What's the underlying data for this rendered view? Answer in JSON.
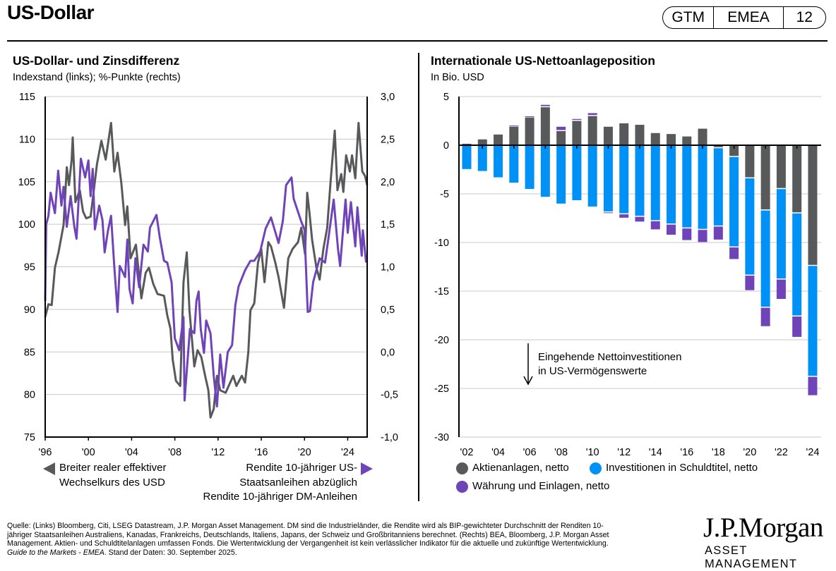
{
  "header": {
    "title": "US-Dollar",
    "badge": [
      "GTM",
      "EMEA",
      "12"
    ]
  },
  "left_panel": {
    "title": "US-Dollar- und Zinsdifferenz",
    "subtitle": "Indexstand (links); %-Punkte (rechts)",
    "legend_left": [
      "Breiter realer effektiver",
      "Wechselkurs des USD"
    ],
    "legend_right": [
      "Rendite 10-jähriger US-",
      "Staatsanleihen abzüglich",
      "Rendite 10-jähriger DM-Anleihen"
    ]
  },
  "right_panel": {
    "title": "Internationale US-Nettoanlageposition",
    "subtitle": "In Bio. USD",
    "annotation": [
      "Eingehende Nettoinvestitionen",
      "in US-Vermögenswerte"
    ],
    "legend": [
      "Aktienanlagen, netto",
      "Investitionen in Schuldtitel, netto",
      "Währung und Einlagen, netto"
    ]
  },
  "footer": {
    "lines": [
      "Quelle: (Links) Bloomberg, Citi, LSEG Datastream, J.P. Morgan Asset Management. DM sind die Industrieländer, die Rendite wird als BIP-gewichteter Durchschnitt der Renditen 10-",
      "jähriger Staatsanleihen Australiens, Kanadas, Frankreichs, Deutschlands, Italiens, Japans, der Schweiz und Großbritanniens berechnet. (Rechts) BEA, Bloomberg, J.P. Morgan Asset",
      "Management. Aktien- und Schuldtitelanlagen umfassen Fonds. Die Wertentwicklung der Vergangenheit ist kein verlässlicher Indikator für die aktuelle und zukünftige Wertentwicklung."
    ],
    "last_line_italic": "Guide to the Markets - EMEA",
    "last_line_rest": ". Stand der Daten: 30. September 2025."
  },
  "logo": {
    "main": "J.P.Morgan",
    "sub": "ASSET MANAGEMENT"
  },
  "colors": {
    "gray": "#58595b",
    "blue": "#0091f7",
    "purple": "#6f44b8",
    "grid": "#c8c8c8"
  },
  "chart_data": [
    {
      "type": "line",
      "title": "US-Dollar- und Zinsdifferenz",
      "subtitle": "Indexstand (links); %-Punkte (rechts)",
      "xlabel": "",
      "x_ticks": [
        "'96",
        "'00",
        "'04",
        "'08",
        "'12",
        "'16",
        "'20",
        "'24"
      ],
      "x_tick_years": [
        1996,
        2000,
        2004,
        2008,
        2012,
        2016,
        2020,
        2024
      ],
      "xlim": [
        1996,
        2025.8
      ],
      "y_left": {
        "lim": [
          75,
          115
        ],
        "ticks": [
          "115",
          "110",
          "105",
          "100",
          "95",
          "90",
          "85",
          "80",
          "75"
        ],
        "tick_values": [
          115,
          110,
          105,
          100,
          95,
          90,
          85,
          80,
          75
        ]
      },
      "y_right": {
        "lim": [
          -1.0,
          3.0
        ],
        "ticks": [
          "3,0",
          "2,5",
          "2,0",
          "1,5",
          "1,0",
          "0,5",
          "0,0",
          "-0,5",
          "-1,0"
        ],
        "tick_values": [
          3.0,
          2.5,
          2.0,
          1.5,
          1.0,
          0.5,
          0.0,
          -0.5,
          -1.0
        ]
      },
      "grid": true,
      "series": [
        {
          "name": "Breiter realer effektiver Wechselkurs des USD",
          "axis": "left",
          "color": "#58595b",
          "points": [
            [
              1996.0,
              89.1
            ],
            [
              1996.3,
              90.6
            ],
            [
              1996.6,
              90.5
            ],
            [
              1996.9,
              94.9
            ],
            [
              1997.25,
              96.8
            ],
            [
              1997.7,
              99.9
            ],
            [
              1998.0,
              106.7
            ],
            [
              1998.2,
              104.6
            ],
            [
              1998.45,
              107.6
            ],
            [
              1998.55,
              110.2
            ],
            [
              1998.8,
              102.6
            ],
            [
              1999.2,
              104.0
            ],
            [
              1999.5,
              101.5
            ],
            [
              1999.8,
              100.7
            ],
            [
              2000.2,
              100.9
            ],
            [
              2000.5,
              104.0
            ],
            [
              2000.8,
              107.1
            ],
            [
              2001.2,
              109.8
            ],
            [
              2001.6,
              107.6
            ],
            [
              2002.1,
              111.9
            ],
            [
              2002.4,
              106.2
            ],
            [
              2002.7,
              108.4
            ],
            [
              2003.05,
              104.8
            ],
            [
              2003.4,
              99.9
            ],
            [
              2003.6,
              102.1
            ],
            [
              2003.9,
              96.0
            ],
            [
              2004.4,
              97.6
            ],
            [
              2004.9,
              91.3
            ],
            [
              2005.3,
              94.3
            ],
            [
              2005.6,
              94.9
            ],
            [
              2006.0,
              93.0
            ],
            [
              2006.4,
              91.8
            ],
            [
              2007.0,
              91.6
            ],
            [
              2007.3,
              89.3
            ],
            [
              2007.6,
              87.7
            ],
            [
              2007.8,
              84.1
            ],
            [
              2008.1,
              81.6
            ],
            [
              2008.5,
              81.0
            ],
            [
              2008.8,
              93.2
            ],
            [
              2009.1,
              96.7
            ],
            [
              2009.35,
              89.9
            ],
            [
              2009.8,
              83.3
            ],
            [
              2010.1,
              85.2
            ],
            [
              2010.45,
              84.4
            ],
            [
              2010.8,
              82.2
            ],
            [
              2011.1,
              80.5
            ],
            [
              2011.3,
              77.3
            ],
            [
              2011.6,
              78.3
            ],
            [
              2011.9,
              82.2
            ],
            [
              2012.2,
              80.5
            ],
            [
              2012.7,
              80.2
            ],
            [
              2013.4,
              82.2
            ],
            [
              2013.7,
              81.0
            ],
            [
              2014.2,
              82.2
            ],
            [
              2014.5,
              81.4
            ],
            [
              2014.8,
              85.0
            ],
            [
              2015.0,
              89.9
            ],
            [
              2015.35,
              90.7
            ],
            [
              2015.7,
              95.5
            ],
            [
              2016.0,
              97.1
            ],
            [
              2016.3,
              93.2
            ],
            [
              2016.65,
              97.9
            ],
            [
              2016.9,
              97.4
            ],
            [
              2017.3,
              95.5
            ],
            [
              2017.6,
              93.8
            ],
            [
              2018.1,
              90.2
            ],
            [
              2018.5,
              96.0
            ],
            [
              2018.9,
              97.1
            ],
            [
              2019.4,
              97.9
            ],
            [
              2019.7,
              99.6
            ],
            [
              2020.05,
              96.5
            ],
            [
              2020.25,
              103.7
            ],
            [
              2020.45,
              101.5
            ],
            [
              2020.7,
              98.2
            ],
            [
              2021.1,
              94.9
            ],
            [
              2021.4,
              93.5
            ],
            [
              2021.75,
              97.1
            ],
            [
              2022.1,
              99.6
            ],
            [
              2022.4,
              104.8
            ],
            [
              2022.8,
              111.0
            ],
            [
              2023.05,
              104.0
            ],
            [
              2023.4,
              105.9
            ],
            [
              2023.6,
              103.8
            ],
            [
              2023.85,
              108.1
            ],
            [
              2024.2,
              106.2
            ],
            [
              2024.4,
              108.1
            ],
            [
              2024.7,
              105.4
            ],
            [
              2025.0,
              111.9
            ],
            [
              2025.35,
              106.2
            ],
            [
              2025.6,
              105.7
            ],
            [
              2025.8,
              104.6
            ]
          ]
        },
        {
          "name": "Rendite 10-jähriger US-Staatsanleihen abzüglich Rendite 10-jähriger DM-Anleihen",
          "axis": "right",
          "color": "#6f44b8",
          "points": [
            [
              1996.0,
              0.6
            ],
            [
              1996.1,
              1.5
            ],
            [
              1996.3,
              1.6
            ],
            [
              1996.5,
              1.87
            ],
            [
              1996.9,
              1.63
            ],
            [
              1997.2,
              2.13
            ],
            [
              1997.5,
              1.72
            ],
            [
              1997.7,
              1.94
            ],
            [
              1998.0,
              1.47
            ],
            [
              1998.35,
              1.83
            ],
            [
              1998.7,
              1.47
            ],
            [
              1998.9,
              1.33
            ],
            [
              1999.3,
              2.27
            ],
            [
              1999.7,
              2.05
            ],
            [
              2000.0,
              2.25
            ],
            [
              2000.2,
              1.83
            ],
            [
              2000.4,
              2.15
            ],
            [
              2000.6,
              1.44
            ],
            [
              2001.0,
              1.72
            ],
            [
              2001.3,
              1.55
            ],
            [
              2001.5,
              1.17
            ],
            [
              2001.8,
              1.42
            ],
            [
              2002.1,
              1.6
            ],
            [
              2002.4,
              1.0
            ],
            [
              2002.7,
              0.47
            ],
            [
              2002.9,
              1.01
            ],
            [
              2003.4,
              0.88
            ],
            [
              2003.6,
              1.32
            ],
            [
              2003.8,
              0.74
            ],
            [
              2004.1,
              0.57
            ],
            [
              2004.35,
              1.1
            ],
            [
              2004.7,
              0.76
            ],
            [
              2005.1,
              1.26
            ],
            [
              2005.5,
              1.18
            ],
            [
              2005.7,
              1.46
            ],
            [
              2006.3,
              1.61
            ],
            [
              2006.6,
              1.35
            ],
            [
              2007.0,
              1.07
            ],
            [
              2007.3,
              1.05
            ],
            [
              2007.7,
              0.82
            ],
            [
              2008.0,
              0.16
            ],
            [
              2008.4,
              0.02
            ],
            [
              2008.8,
              0.41
            ],
            [
              2008.9,
              -0.57
            ],
            [
              2009.2,
              -0.06
            ],
            [
              2009.4,
              0.27
            ],
            [
              2009.8,
              0.22
            ],
            [
              2010.0,
              0.6
            ],
            [
              2010.2,
              0.71
            ],
            [
              2010.4,
              0.27
            ],
            [
              2010.7,
              -0.01
            ],
            [
              2010.9,
              0.37
            ],
            [
              2011.3,
              0.22
            ],
            [
              2011.6,
              -0.28
            ],
            [
              2011.9,
              -0.64
            ],
            [
              2012.2,
              -0.03
            ],
            [
              2012.5,
              -0.42
            ],
            [
              2012.9,
              0.0
            ],
            [
              2013.3,
              0.08
            ],
            [
              2013.6,
              0.55
            ],
            [
              2013.9,
              0.77
            ],
            [
              2014.5,
              0.96
            ],
            [
              2015.0,
              1.07
            ],
            [
              2015.35,
              1.07
            ],
            [
              2015.9,
              1.18
            ],
            [
              2016.4,
              1.45
            ],
            [
              2016.9,
              1.58
            ],
            [
              2017.6,
              1.28
            ],
            [
              2018.0,
              1.54
            ],
            [
              2018.3,
              1.96
            ],
            [
              2018.8,
              2.05
            ],
            [
              2019.0,
              1.8
            ],
            [
              2019.7,
              1.53
            ],
            [
              2020.0,
              1.44
            ],
            [
              2020.3,
              0.47
            ],
            [
              2020.5,
              0.48
            ],
            [
              2020.8,
              0.82
            ],
            [
              2021.4,
              1.1
            ],
            [
              2021.9,
              1.05
            ],
            [
              2022.2,
              1.32
            ],
            [
              2022.7,
              1.79
            ],
            [
              2023.1,
              1.21
            ],
            [
              2023.3,
              1.01
            ],
            [
              2023.8,
              1.79
            ],
            [
              2024.0,
              1.4
            ],
            [
              2024.3,
              1.76
            ],
            [
              2024.7,
              1.24
            ],
            [
              2024.9,
              1.7
            ],
            [
              2025.3,
              1.13
            ],
            [
              2025.4,
              1.43
            ],
            [
              2025.7,
              1.05
            ]
          ]
        }
      ]
    },
    {
      "type": "bar",
      "stacked": true,
      "title": "Internationale US-Nettoanlageposition",
      "subtitle": "In Bio. USD",
      "xlabel": "",
      "ylabel": "",
      "ylim": [
        -30,
        5
      ],
      "y_ticks": [
        "5",
        "0",
        "-5",
        "-10",
        "-15",
        "-20",
        "-25",
        "-30"
      ],
      "y_tick_values": [
        5,
        0,
        -5,
        -10,
        -15,
        -20,
        -25,
        -30
      ],
      "x_ticks": [
        "'02",
        "'04",
        "'06",
        "'08",
        "'10",
        "'12",
        "'14",
        "'16",
        "'18",
        "'20",
        "'22",
        "'24"
      ],
      "grid": true,
      "legend_position": "bottom",
      "categories": [
        2002,
        2003,
        2004,
        2005,
        2006,
        2007,
        2008,
        2009,
        2010,
        2011,
        2012,
        2013,
        2014,
        2015,
        2016,
        2017,
        2018,
        2019,
        2020,
        2021,
        2022,
        2023,
        2024
      ],
      "series": [
        {
          "name": "Aktienanlagen, netto",
          "color": "#58595b",
          "values": [
            0.15,
            0.6,
            1.1,
            1.9,
            2.85,
            3.9,
            1.45,
            2.5,
            3.0,
            1.9,
            2.25,
            2.1,
            1.25,
            1.15,
            0.9,
            1.7,
            -0.2,
            -1.1,
            -3.3,
            -6.6,
            -4.4,
            -6.9,
            -12.3
          ]
        },
        {
          "name": "Investitionen in Schuldtitel, netto",
          "color": "#0091f7",
          "values": [
            -2.45,
            -2.65,
            -3.3,
            -3.85,
            -4.5,
            -5.3,
            -6.0,
            -5.65,
            -6.3,
            -6.8,
            -7.0,
            -7.25,
            -7.7,
            -8.05,
            -8.45,
            -8.6,
            -8.05,
            -9.3,
            -10.0,
            -10.0,
            -9.3,
            -10.6,
            -11.4
          ]
        },
        {
          "name": "Währung und Einlagen, netto",
          "color": "#6f44b8",
          "values": [
            0.0,
            0.0,
            0.0,
            0.12,
            0.12,
            0.25,
            0.45,
            0.2,
            0.3,
            -0.12,
            -0.45,
            -0.6,
            -0.95,
            -1.15,
            -1.3,
            -1.35,
            -1.45,
            -1.3,
            -1.6,
            -2.0,
            -2.1,
            -2.2,
            -2.0
          ]
        }
      ],
      "annotation": "Eingehende Nettoinvestitionen in US-Vermögenswerte (Pfeil nach unten)"
    }
  ]
}
